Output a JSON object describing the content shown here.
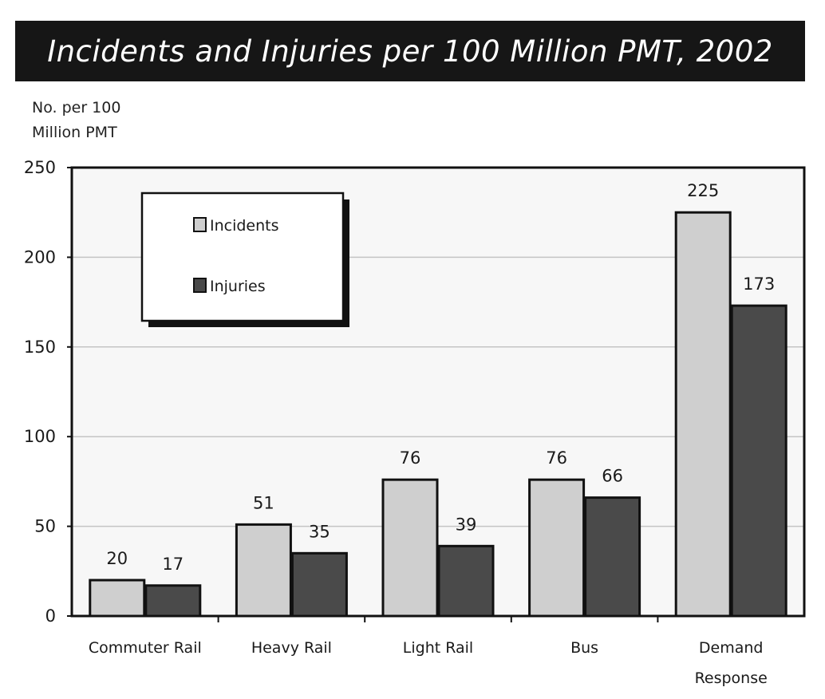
{
  "chart_data": {
    "type": "bar",
    "title": "Incidents and Injuries per 100 Million PMT, 2002",
    "ylabel_lines": [
      "No. per 100",
      "Million PMT"
    ],
    "categories": [
      [
        "Commuter Rail"
      ],
      [
        "Heavy Rail"
      ],
      [
        "Light Rail"
      ],
      [
        "Bus"
      ],
      [
        "Demand",
        "Response"
      ]
    ],
    "series": [
      {
        "name": "Incidents",
        "values": [
          20,
          51,
          76,
          76,
          225
        ],
        "color": "#cfcfcf"
      },
      {
        "name": "Injuries",
        "values": [
          17,
          35,
          39,
          66,
          173
        ],
        "color": "#4a4a4a"
      }
    ],
    "ylim": [
      0,
      250
    ],
    "yticks": [
      0,
      50,
      100,
      150,
      200,
      250
    ],
    "grid": true,
    "legend_position": "top-left"
  }
}
